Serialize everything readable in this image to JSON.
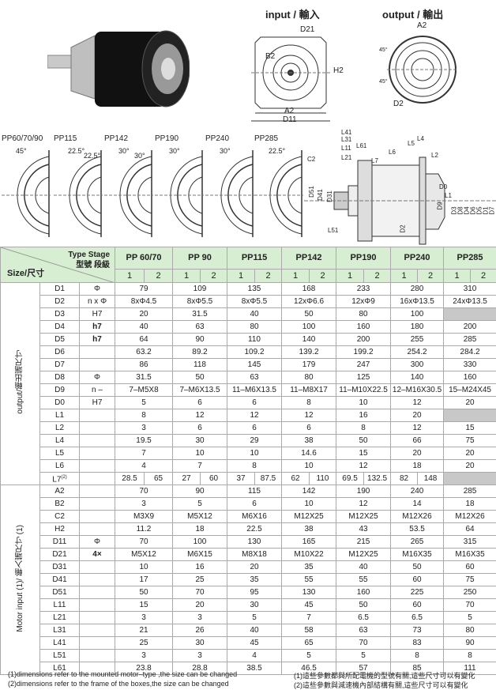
{
  "header": {
    "input_title": "input / 輸入",
    "output_title": "output / 輸出"
  },
  "input_drawing": {
    "labels": [
      "D21",
      "B2",
      "H2",
      "A2",
      "D11"
    ]
  },
  "output_drawing": {
    "labels": [
      "A2",
      "45°",
      "45°",
      "D2"
    ]
  },
  "flange_views": [
    {
      "model": "PP60/70/90",
      "angles": [
        "45°"
      ]
    },
    {
      "model": "PP115",
      "angles": [
        "22.5°",
        "22.5°"
      ]
    },
    {
      "model": "PP142",
      "angles": [
        "30°",
        "30°"
      ]
    },
    {
      "model": "PP190",
      "angles": [
        "30°"
      ]
    },
    {
      "model": "PP240",
      "angles": [
        "30°"
      ]
    },
    {
      "model": "PP285",
      "angles": [
        "22.5°"
      ]
    }
  ],
  "side_drawing": {
    "labels": [
      "L41",
      "L31",
      "L11",
      "L21",
      "L61",
      "C2",
      "L7",
      "L6",
      "L5",
      "L4",
      "L2",
      "D51",
      "D41",
      "D31",
      "L51",
      "D2",
      "D0",
      "L1",
      "D9",
      "D3",
      "D8",
      "D4",
      "D6",
      "D5",
      "D1",
      "D7"
    ]
  },
  "table": {
    "type_stage": "Type Stage",
    "type_stage_cn": "型號 段級",
    "size": "Size/尺寸",
    "models": [
      "PP 60/70",
      "PP 90",
      "PP115",
      "PP142",
      "PP190",
      "PP240",
      "PP285"
    ],
    "stages": [
      "1",
      "2"
    ],
    "sections": [
      {
        "label": "output/輸出端尺寸",
        "rows": [
          {
            "p": "D1",
            "u": "Φ",
            "v": [
              "79",
              "109",
              "135",
              "168",
              "233",
              "280",
              "310"
            ]
          },
          {
            "p": "D2",
            "u": "n x Φ",
            "v": [
              "8xΦ4.5",
              "8xΦ5.5",
              "8xΦ5.5",
              "12xΦ6.6",
              "12xΦ9",
              "16xΦ13.5",
              "24xΦ13.5"
            ]
          },
          {
            "p": "D3",
            "u": "H7",
            "v": [
              "20",
              "31.5",
              "40",
              "50",
              "80",
              "100",
              null
            ]
          },
          {
            "p": "D4",
            "u": "h7",
            "v": [
              "40",
              "63",
              "80",
              "100",
              "160",
              "180",
              "200"
            ]
          },
          {
            "p": "D5",
            "u": "h7",
            "v": [
              "64",
              "90",
              "110",
              "140",
              "200",
              "255",
              "285"
            ]
          },
          {
            "p": "D6",
            "u": "",
            "v": [
              "63.2",
              "89.2",
              "109.2",
              "139.2",
              "199.2",
              "254.2",
              "284.2"
            ]
          },
          {
            "p": "D7",
            "u": "",
            "v": [
              "86",
              "118",
              "145",
              "179",
              "247",
              "300",
              "330"
            ]
          },
          {
            "p": "D8",
            "u": "Φ",
            "v": [
              "31.5",
              "50",
              "63",
              "80",
              "125",
              "140",
              "160"
            ]
          },
          {
            "p": "D9",
            "u": "n –",
            "v": [
              "7–M5X8",
              "7–M6X13.5",
              "11–M6X13.5",
              "11–M8X17",
              "11–M10X22.5",
              "12–M16X30.5",
              "15–M24X45"
            ]
          },
          {
            "p": "D0",
            "u": "H7",
            "v": [
              "5",
              "6",
              "6",
              "8",
              "10",
              "12",
              "20"
            ]
          },
          {
            "p": "L1",
            "u": "",
            "v": [
              "8",
              "12",
              "12",
              "12",
              "16",
              "20",
              null
            ]
          },
          {
            "p": "L2",
            "u": "",
            "v": [
              "3",
              "6",
              "6",
              "6",
              "8",
              "12",
              "15"
            ]
          },
          {
            "p": "L4",
            "u": "",
            "v": [
              "19.5",
              "30",
              "29",
              "38",
              "50",
              "66",
              "75"
            ]
          },
          {
            "p": "L5",
            "u": "",
            "v": [
              "7",
              "10",
              "10",
              "14.6",
              "15",
              "20",
              "20"
            ]
          },
          {
            "p": "L6",
            "u": "",
            "v": [
              "4",
              "7",
              "8",
              "10",
              "12",
              "18",
              "20"
            ]
          },
          {
            "p": "L7",
            "sup": "(2)",
            "u": "",
            "split": true,
            "v": [
              [
                "28.5",
                "65"
              ],
              [
                "27",
                "60"
              ],
              [
                "37",
                "87.5"
              ],
              [
                "62",
                "110"
              ],
              [
                "69.5",
                "132.5"
              ],
              [
                "82",
                "148"
              ],
              null
            ]
          }
        ]
      },
      {
        "label": "Motor  input (1)/ 輸入端尺寸 (1)",
        "rows": [
          {
            "p": "A2",
            "u": "",
            "v": [
              "70",
              "90",
              "115",
              "142",
              "190",
              "240",
              "285"
            ]
          },
          {
            "p": "B2",
            "u": "",
            "v": [
              "3",
              "5",
              "6",
              "10",
              "12",
              "14",
              "18"
            ]
          },
          {
            "p": "C2",
            "u": "",
            "v": [
              "M3X9",
              "M5X12",
              "M6X16",
              "M12X25",
              "M12X25",
              "M12X26",
              "M12X26"
            ]
          },
          {
            "p": "H2",
            "u": "",
            "v": [
              "11.2",
              "18",
              "22.5",
              "38",
              "43",
              "53.5",
              "64"
            ]
          },
          {
            "p": "D11",
            "u": "Φ",
            "v": [
              "70",
              "100",
              "130",
              "165",
              "215",
              "265",
              "315"
            ]
          },
          {
            "p": "D21",
            "u": "4×",
            "v": [
              "M5X12",
              "M6X15",
              "M8X18",
              "M10X22",
              "M12X25",
              "M16X35",
              "M16X35"
            ]
          },
          {
            "p": "D31",
            "u": "",
            "v": [
              "10",
              "16",
              "20",
              "35",
              "40",
              "50",
              "60"
            ]
          },
          {
            "p": "D41",
            "u": "",
            "v": [
              "17",
              "25",
              "35",
              "55",
              "55",
              "60",
              "75"
            ]
          },
          {
            "p": "D51",
            "u": "",
            "v": [
              "50",
              "70",
              "95",
              "130",
              "160",
              "225",
              "250"
            ]
          },
          {
            "p": "L11",
            "u": "",
            "v": [
              "15",
              "20",
              "30",
              "45",
              "50",
              "60",
              "70"
            ]
          },
          {
            "p": "L21",
            "u": "",
            "v": [
              "3",
              "3",
              "5",
              "7",
              "6.5",
              "6.5",
              "5"
            ]
          },
          {
            "p": "L31",
            "u": "",
            "v": [
              "21",
              "26",
              "40",
              "58",
              "63",
              "73",
              "80"
            ]
          },
          {
            "p": "L41",
            "u": "",
            "v": [
              "25",
              "30",
              "45",
              "65",
              "70",
              "83",
              "90"
            ]
          },
          {
            "p": "L51",
            "u": "",
            "v": [
              "3",
              "3",
              "4",
              "5",
              "5",
              "8",
              "8"
            ]
          },
          {
            "p": "L61",
            "u": "",
            "v": [
              "23.8",
              "28.8",
              "38.5",
              "46.5",
              "57",
              "85",
              "111"
            ]
          }
        ]
      }
    ]
  },
  "footnotes": {
    "en1": "(1)dimensions refer to the mounted motor–type ,the size can be changed",
    "en2": "(2)dimensions refer to the frame of the boxes,the size can be changed",
    "cn1": "(1)這些參數都與所配電機的型號有關,這些尺寸可以有變化",
    "cn2": "(2)這些參數與減速機內部結構有關,這些尺寸可以有變化"
  },
  "colors": {
    "header_bg": "#d7eed2",
    "na_cell": "#c8c8c8"
  }
}
